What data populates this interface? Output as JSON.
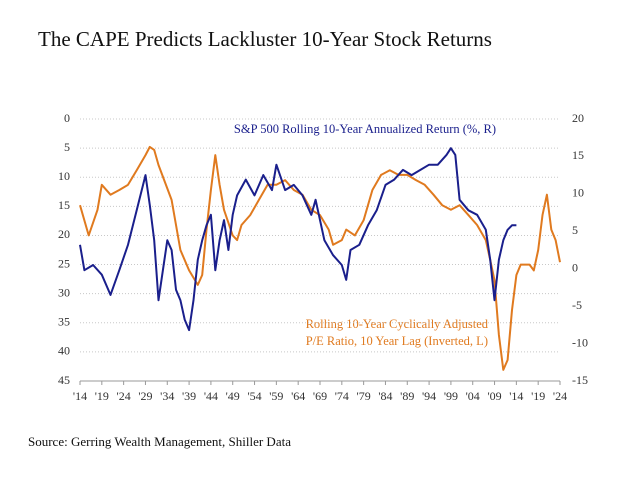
{
  "chart_data": {
    "type": "line",
    "title": "The CAPE Predicts Lackluster 10-Year Stock Returns",
    "source": "Source: Gerring Wealth Management, Shiller Data",
    "annotations": [
      "S&P 500 Rolling 10-Year Annualized Return (%, R)",
      "Rolling 10-Year Cyclically Adjusted",
      "P/E Ratio, 10 Year Lag (Inverted, L)"
    ],
    "xlim": [
      1914,
      2024
    ],
    "xticks": [
      {
        "value": 1914,
        "label": "'14"
      },
      {
        "value": 1919,
        "label": "'19"
      },
      {
        "value": 1924,
        "label": "'24"
      },
      {
        "value": 1929,
        "label": "'29"
      },
      {
        "value": 1934,
        "label": "'34"
      },
      {
        "value": 1939,
        "label": "'39"
      },
      {
        "value": 1944,
        "label": "'44"
      },
      {
        "value": 1949,
        "label": "'49"
      },
      {
        "value": 1954,
        "label": "'54"
      },
      {
        "value": 1959,
        "label": "'59"
      },
      {
        "value": 1964,
        "label": "'64"
      },
      {
        "value": 1969,
        "label": "'69"
      },
      {
        "value": 1974,
        "label": "'74"
      },
      {
        "value": 1979,
        "label": "'79"
      },
      {
        "value": 1984,
        "label": "'84"
      },
      {
        "value": 1989,
        "label": "'89"
      },
      {
        "value": 1994,
        "label": "'94"
      },
      {
        "value": 1999,
        "label": "'99"
      },
      {
        "value": 2004,
        "label": "'04"
      },
      {
        "value": 2009,
        "label": "'09"
      },
      {
        "value": 2014,
        "label": "'14"
      },
      {
        "value": 2019,
        "label": "'19"
      },
      {
        "value": 2024,
        "label": "'24"
      }
    ],
    "ylim": [
      0,
      45
    ],
    "y_inverted": true,
    "yticks": [
      0,
      5,
      10,
      15,
      20,
      25,
      30,
      35,
      40,
      45
    ],
    "y2lim": [
      -15,
      20
    ],
    "y2ticks": [
      20,
      15,
      10,
      5,
      0,
      -5,
      -10,
      -15
    ],
    "grid": true,
    "series": [
      {
        "color": "#e07a1f",
        "axis": "y",
        "x": [
          1914,
          1916,
          1918,
          1919,
          1921,
          1923,
          1925,
          1927,
          1929,
          1930,
          1931,
          1932,
          1935,
          1937,
          1939,
          1941,
          1942,
          1943,
          1944,
          1945,
          1946,
          1947,
          1949,
          1950,
          1951,
          1953,
          1955,
          1957,
          1959,
          1961,
          1963,
          1965,
          1967,
          1969,
          1971,
          1972,
          1974,
          1975,
          1977,
          1979,
          1981,
          1983,
          1985,
          1987,
          1989,
          1991,
          1993,
          1995,
          1997,
          1999,
          2001,
          2003,
          2005,
          2007,
          2008,
          2009,
          2010,
          2011,
          2012,
          2013,
          2014,
          2015,
          2017,
          2018,
          2019,
          2020,
          2021,
          2022,
          2023,
          2024
        ],
        "values": [
          14.8,
          20,
          15.6,
          11.3,
          13,
          12.2,
          11.3,
          8.8,
          6.2,
          4.8,
          5.3,
          7.9,
          13.9,
          22.5,
          26,
          28.5,
          26.8,
          19,
          12.2,
          6.2,
          11.3,
          15.6,
          20,
          20.8,
          18.2,
          16.5,
          13.9,
          11.3,
          11.3,
          10.5,
          12.2,
          13,
          15.6,
          16.5,
          19,
          21.6,
          20.8,
          19,
          20,
          17.4,
          12.2,
          9.6,
          8.8,
          9.6,
          9.6,
          10.5,
          11.3,
          13,
          14.8,
          15.6,
          14.8,
          16.5,
          18.2,
          20.8,
          24.2,
          27.7,
          37.1,
          43.1,
          41.4,
          32.8,
          26.8,
          25,
          25,
          26,
          22.5,
          16.5,
          13,
          19,
          20.8,
          24.6
        ]
      },
      {
        "color": "#1a1f8c",
        "axis": "y2",
        "x": [
          1914,
          1915,
          1917,
          1919,
          1921,
          1923,
          1925,
          1927,
          1929,
          1930,
          1931,
          1932,
          1933,
          1934,
          1935,
          1936,
          1937,
          1938,
          1939,
          1940,
          1941,
          1942,
          1943,
          1944,
          1945,
          1946,
          1947,
          1948,
          1949,
          1950,
          1952,
          1954,
          1956,
          1958,
          1959,
          1961,
          1963,
          1965,
          1967,
          1968,
          1970,
          1972,
          1974,
          1975,
          1976,
          1978,
          1980,
          1982,
          1984,
          1986,
          1988,
          1990,
          1992,
          1994,
          1996,
          1998,
          1999,
          2000,
          2001,
          2003,
          2005,
          2007,
          2008,
          2009,
          2010,
          2011,
          2012,
          2013,
          2014
        ],
        "values": [
          3.2,
          -0.2,
          0.5,
          -0.8,
          -3.5,
          -0.2,
          3.2,
          7.8,
          12.5,
          8.5,
          3.8,
          -4.2,
          -0.2,
          3.8,
          2.5,
          -2.8,
          -4.2,
          -6.8,
          -8.2,
          -4.2,
          1.2,
          3.8,
          5.8,
          7.2,
          -0.2,
          3.8,
          6.5,
          2.5,
          7.2,
          9.8,
          11.9,
          9.8,
          12.5,
          10.5,
          13.9,
          10.5,
          11.2,
          9.8,
          7.2,
          9.2,
          3.8,
          1.8,
          0.5,
          -1.5,
          2.5,
          3.2,
          5.8,
          7.8,
          11.2,
          11.9,
          13.2,
          12.5,
          13.2,
          13.9,
          13.9,
          15.2,
          16.1,
          15.2,
          9.2,
          7.8,
          7.2,
          5.2,
          1.2,
          -4.2,
          1.2,
          3.8,
          5.2,
          5.8,
          5.8
        ]
      }
    ]
  }
}
